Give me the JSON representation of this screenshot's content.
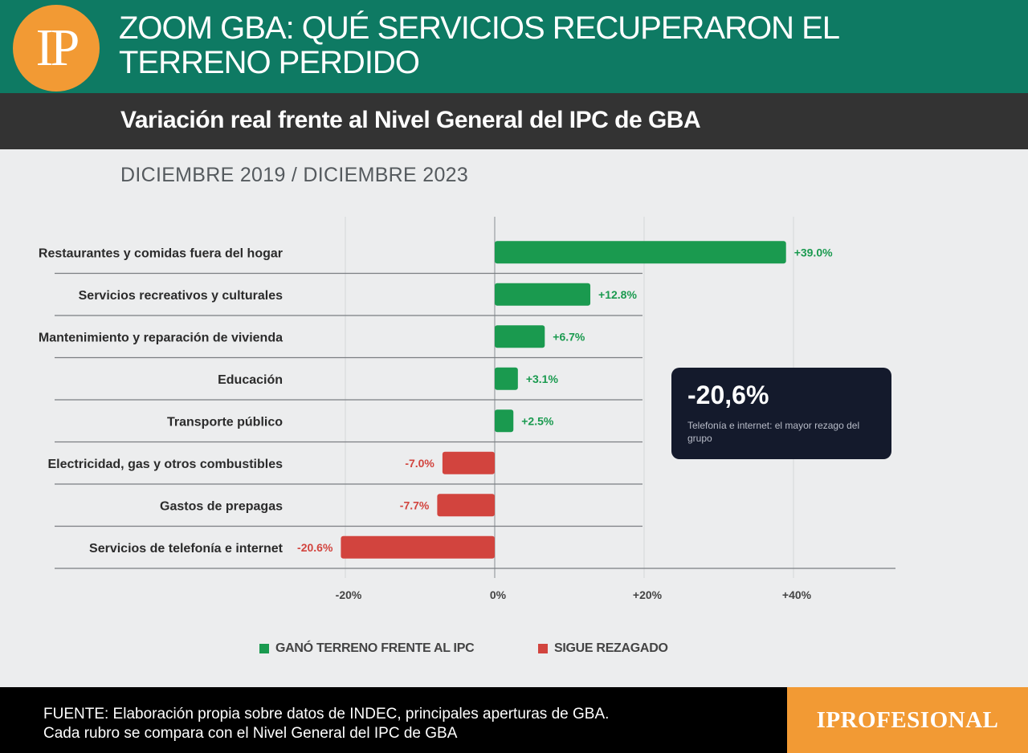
{
  "header": {
    "logo_text": "IP",
    "title": "ZOOM GBA: QUÉ SERVICIOS RECUPERARON EL TERRENO PERDIDO"
  },
  "subtitle": "Variación real frente al Nivel General del IPC de GBA",
  "period": "DICIEMBRE 2019 / DICIEMBRE 2023",
  "callout": {
    "value": "-20,6%",
    "text": "Telefonía e internet: el mayor rezago del grupo"
  },
  "legend": {
    "gained_label": "GANÓ TERRENO FRENTE AL IPC",
    "lagging_label": "SIGUE REZAGADO"
  },
  "colors": {
    "gained": "#1a9a4f",
    "lagging": "#d2443e",
    "header": "#0e7a63",
    "accent": "#f29a34"
  },
  "chart_data": {
    "type": "bar",
    "orientation": "horizontal",
    "categories": [
      "Restaurantes y comidas fuera del hogar",
      "Servicios recreativos y culturales",
      "Mantenimiento y reparación de vivienda",
      "Educación",
      "Transporte público",
      "Electricidad, gas y otros combustibles",
      "Gastos de prepagas",
      "Servicios de telefonía e internet"
    ],
    "values": [
      39.0,
      12.8,
      6.7,
      3.1,
      2.5,
      -7.0,
      -7.7,
      -20.6
    ],
    "value_labels": [
      "+39.0%",
      "+12.8%",
      "+6.7%",
      "+3.1%",
      "+2.5%",
      "-7.0%",
      "-7.7%",
      "-20.6%"
    ],
    "xlim": [
      -20,
      40
    ],
    "x_ticks": [
      "-20%",
      "0%",
      "+20%",
      "+40%"
    ],
    "x_tick_values": [
      -20,
      0,
      20,
      40
    ],
    "grid": true
  },
  "footer": {
    "source_line1": "FUENTE: Elaboración propia sobre datos de INDEC, principales aperturas de GBA.",
    "source_line2": "Cada rubro se compara con el Nivel General del IPC de GBA",
    "brand": "IPROFESIONAL"
  }
}
